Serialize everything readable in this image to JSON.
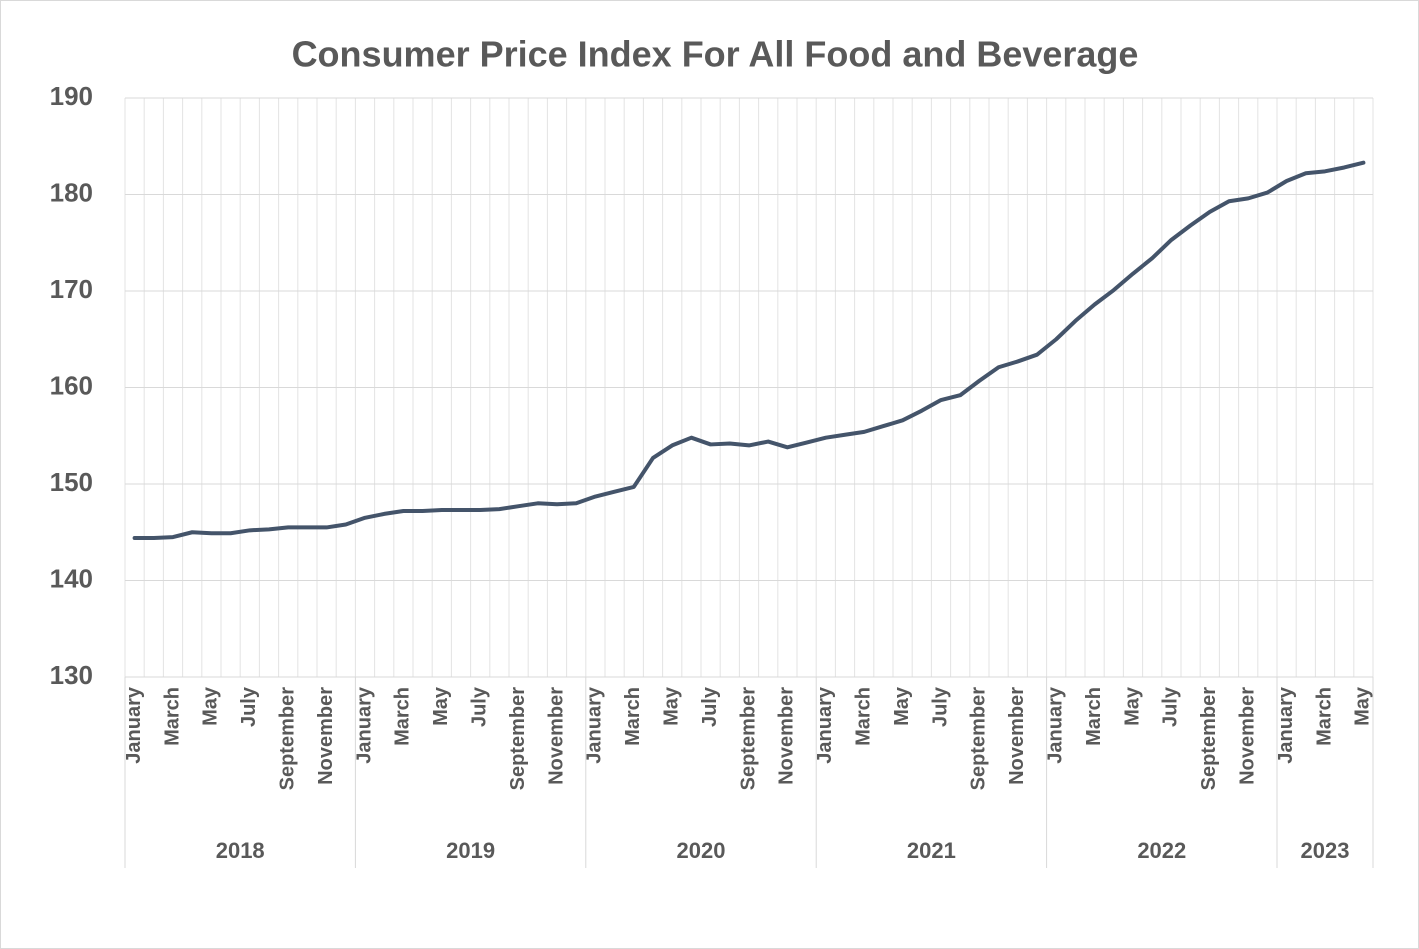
{
  "chart_data": {
    "type": "line",
    "title": "Consumer Price Index For All Food and Beverage",
    "categories": [
      "January",
      null,
      "March",
      null,
      "May",
      null,
      "July",
      null,
      "September",
      null,
      "November",
      null,
      "January",
      null,
      "March",
      null,
      "May",
      null,
      "July",
      null,
      "September",
      null,
      "November",
      null,
      "January",
      null,
      "March",
      null,
      "May",
      null,
      "July",
      null,
      "September",
      null,
      "November",
      null,
      "January",
      null,
      "March",
      null,
      "May",
      null,
      "July",
      null,
      "September",
      null,
      "November",
      null,
      "January",
      null,
      "March",
      null,
      "May",
      null,
      "July",
      null,
      "September",
      null,
      "November",
      null,
      "January",
      null,
      "March",
      null,
      "May"
    ],
    "groups": [
      "2018",
      "2019",
      "2020",
      "2021",
      "2022",
      "2023"
    ],
    "series": [
      {
        "color": "#44546a",
        "values": [
          144.4,
          144.4,
          144.5,
          145.0,
          144.9,
          144.9,
          145.2,
          145.3,
          145.5,
          145.5,
          145.5,
          145.8,
          146.5,
          146.9,
          147.2,
          147.2,
          147.3,
          147.3,
          147.3,
          147.4,
          147.7,
          148.0,
          147.9,
          148.0,
          148.7,
          149.2,
          149.7,
          152.7,
          154.0,
          154.8,
          154.1,
          154.2,
          154.0,
          154.4,
          153.8,
          154.3,
          154.8,
          155.1,
          155.4,
          156.0,
          156.6,
          157.6,
          158.7,
          159.2,
          160.7,
          162.1,
          162.7,
          163.4,
          165.0,
          166.9,
          168.6,
          170.1,
          171.8,
          173.4,
          175.3,
          176.8,
          178.2,
          179.3,
          179.6,
          180.2,
          181.4,
          182.2,
          182.4,
          182.8,
          183.3
        ]
      }
    ],
    "ylim": [
      130,
      190
    ],
    "yticks": [
      130,
      140,
      150,
      160,
      170,
      180,
      190
    ],
    "grid": true
  }
}
